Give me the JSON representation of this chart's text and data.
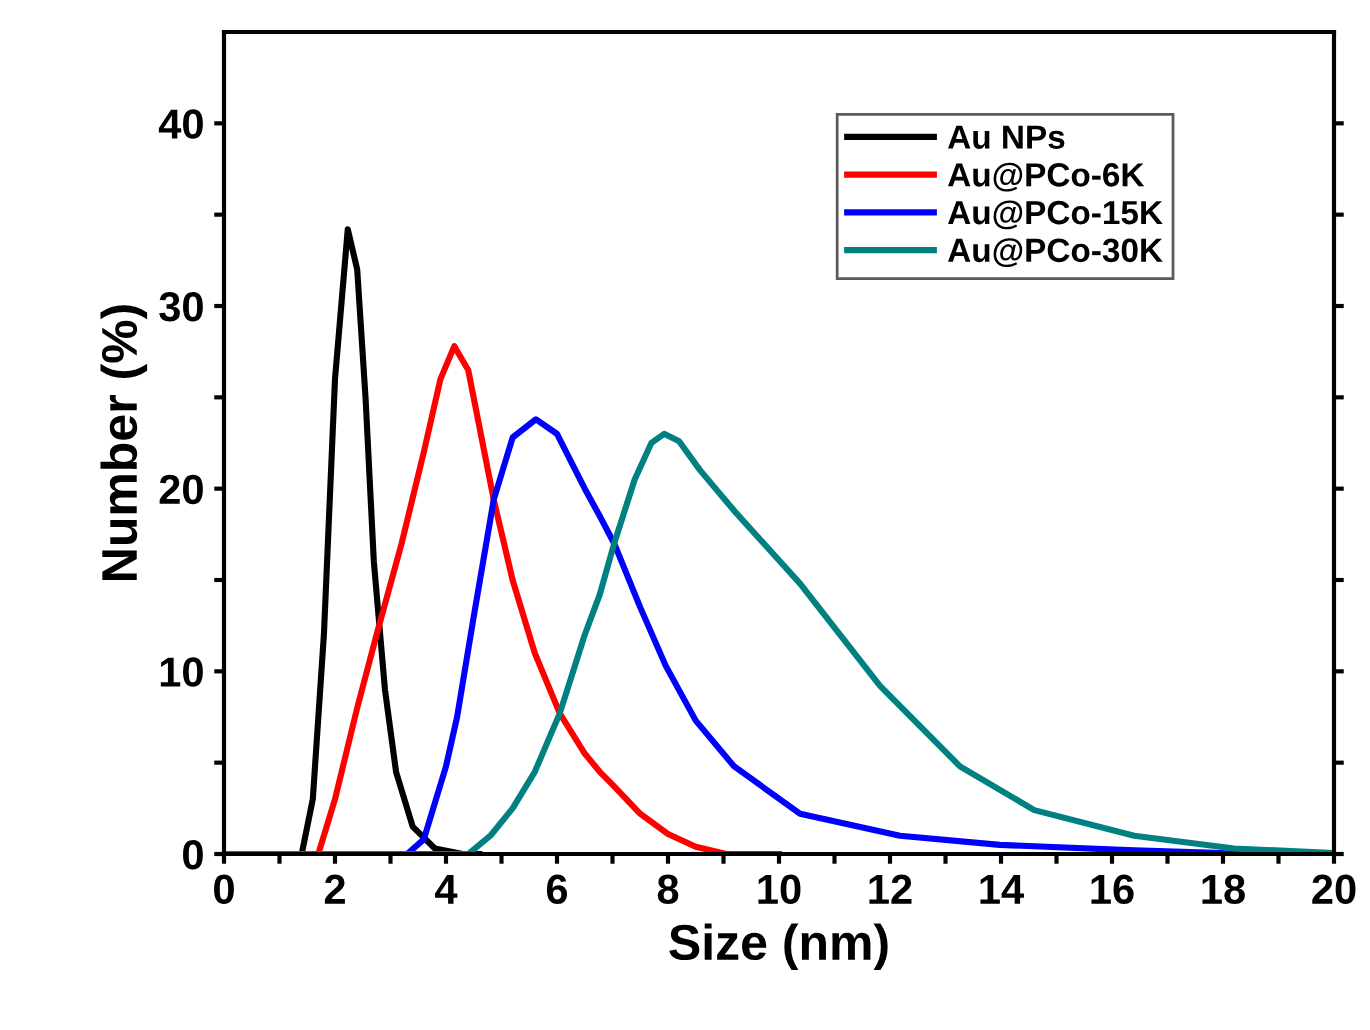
{
  "chart_data": {
    "type": "line",
    "xlabel": "Size (nm)",
    "ylabel": "Number (%)",
    "xlim": [
      0,
      20
    ],
    "ylim": [
      0,
      45
    ],
    "xticks": [
      0,
      {
        "value": 1,
        "label": null
      },
      2,
      {
        "value": 3,
        "label": null
      },
      4,
      {
        "value": 5,
        "label": null
      },
      6,
      {
        "value": 7,
        "label": null
      },
      8,
      {
        "value": 9,
        "label": null
      },
      10,
      {
        "value": 11,
        "label": null
      },
      12,
      {
        "value": 13,
        "label": null
      },
      14,
      {
        "value": 15,
        "label": null
      },
      16,
      {
        "value": 17,
        "label": null
      },
      18,
      {
        "value": 19,
        "label": null
      },
      20
    ],
    "yticks": [
      0,
      {
        "value": 5,
        "label": null
      },
      10,
      {
        "value": 15,
        "label": null
      },
      20,
      {
        "value": 25,
        "label": null
      },
      30,
      {
        "value": 35,
        "label": null
      },
      40
    ],
    "grid": false,
    "legend": "top right",
    "marker": "none",
    "line_style": "solid",
    "series": [
      {
        "name": "Au NPs",
        "color": "#000000",
        "x": [
          0,
          1.4,
          1.6,
          1.8,
          2.0,
          2.23,
          2.4,
          2.55,
          2.7,
          2.9,
          3.1,
          3.4,
          3.8,
          4.3,
          4.6
        ],
        "values": [
          0,
          0,
          3,
          12,
          26,
          34.2,
          32,
          25,
          16,
          9,
          4.5,
          1.5,
          0.3,
          0,
          0
        ]
      },
      {
        "name": "Au@PCo-6K",
        "color": "#ff0000",
        "x": [
          0,
          1.7,
          2.0,
          2.4,
          2.74,
          3.2,
          3.6,
          3.9,
          4.15,
          4.4,
          4.86,
          5.2,
          5.6,
          6.05,
          6.5,
          6.77,
          7.0,
          7.5,
          8.0,
          8.5,
          9.05,
          10
        ],
        "values": [
          0,
          0,
          3,
          8,
          11.9,
          17,
          22,
          26,
          27.8,
          26.5,
          19.4,
          15,
          11,
          7.7,
          5.5,
          4.5,
          3.8,
          2.2,
          1.1,
          0.4,
          0,
          0
        ]
      },
      {
        "name": "Au@PCo-15K",
        "color": "#0000ff",
        "x": [
          0,
          3.3,
          3.6,
          4.0,
          4.2,
          4.5,
          4.86,
          5.2,
          5.62,
          6.0,
          6.5,
          6.77,
          7.03,
          7.5,
          7.96,
          8.5,
          9.19,
          10.38,
          12.18,
          13.98,
          16.4,
          18,
          20
        ],
        "values": [
          0,
          0,
          0.8,
          4.8,
          7.5,
          13,
          19.4,
          22.8,
          23.8,
          23,
          20,
          18.5,
          17,
          13.5,
          10.3,
          7.3,
          4.8,
          2.2,
          1.0,
          0.5,
          0.2,
          0.05,
          0
        ]
      },
      {
        "name": "Au@PCo-30K",
        "color": "#008080",
        "x": [
          0,
          4.4,
          4.8,
          5.2,
          5.6,
          6.05,
          6.5,
          6.77,
          7.03,
          7.4,
          7.7,
          7.93,
          8.2,
          8.58,
          9.19,
          10.38,
          11.82,
          13.26,
          14.6,
          16.4,
          18.2,
          20
        ],
        "values": [
          0,
          0,
          1,
          2.5,
          4.5,
          7.7,
          12,
          14.2,
          17,
          20.5,
          22.5,
          23,
          22.6,
          21,
          18.8,
          14.8,
          9.2,
          4.8,
          2.4,
          1.0,
          0.3,
          0.05
        ]
      }
    ]
  }
}
